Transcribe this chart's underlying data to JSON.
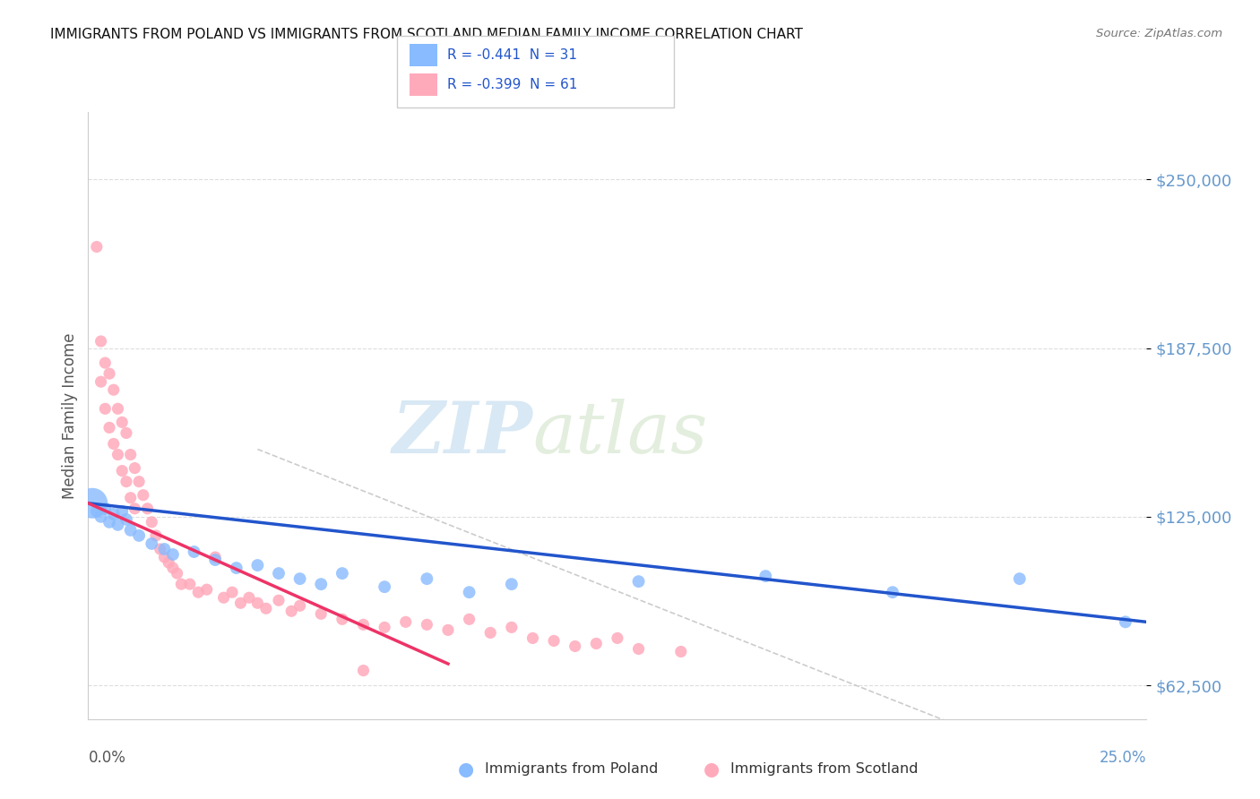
{
  "title": "IMMIGRANTS FROM POLAND VS IMMIGRANTS FROM SCOTLAND MEDIAN FAMILY INCOME CORRELATION CHART",
  "source": "Source: ZipAtlas.com",
  "ylabel": "Median Family Income",
  "yticks": [
    62500,
    125000,
    187500,
    250000
  ],
  "ytick_labels": [
    "$62,500",
    "$125,000",
    "$187,500",
    "$250,000"
  ],
  "xlim": [
    0.0,
    0.25
  ],
  "ylim": [
    50000,
    275000
  ],
  "legend_blue_label": "R = -0.441  N = 31",
  "legend_pink_label": "R = -0.399  N = 61",
  "legend_bottom_blue": "Immigrants from Poland",
  "legend_bottom_pink": "Immigrants from Scotland",
  "watermark_zip": "ZIP",
  "watermark_atlas": "atlas",
  "blue_color": "#88bbff",
  "pink_color": "#ffaabb",
  "blue_line_color": "#2255cc",
  "pink_line_color": "#ee3366",
  "tick_color": "#6699cc",
  "gray_dash_color": "#cccccc",
  "grid_color": "#dddddd",
  "poland_x": [
    0.001,
    0.002,
    0.003,
    0.004,
    0.005,
    0.006,
    0.007,
    0.008,
    0.009,
    0.01,
    0.012,
    0.015,
    0.018,
    0.02,
    0.025,
    0.03,
    0.035,
    0.04,
    0.045,
    0.05,
    0.055,
    0.06,
    0.07,
    0.08,
    0.09,
    0.1,
    0.13,
    0.16,
    0.19,
    0.22,
    0.245
  ],
  "poland_y": [
    130000,
    127000,
    125000,
    128000,
    123000,
    126000,
    122000,
    127000,
    124000,
    120000,
    118000,
    115000,
    113000,
    111000,
    112000,
    109000,
    106000,
    107000,
    104000,
    102000,
    100000,
    104000,
    99000,
    102000,
    97000,
    100000,
    101000,
    103000,
    97000,
    102000,
    86000
  ],
  "poland_sizes": [
    600,
    100,
    100,
    100,
    100,
    100,
    100,
    100,
    100,
    100,
    100,
    100,
    100,
    100,
    100,
    100,
    100,
    100,
    100,
    100,
    100,
    100,
    100,
    100,
    100,
    100,
    100,
    100,
    100,
    100,
    100
  ],
  "scotland_x": [
    0.002,
    0.003,
    0.003,
    0.004,
    0.004,
    0.005,
    0.005,
    0.006,
    0.006,
    0.007,
    0.007,
    0.008,
    0.008,
    0.009,
    0.009,
    0.01,
    0.01,
    0.011,
    0.011,
    0.012,
    0.013,
    0.014,
    0.015,
    0.016,
    0.017,
    0.018,
    0.019,
    0.02,
    0.021,
    0.022,
    0.024,
    0.026,
    0.028,
    0.03,
    0.032,
    0.034,
    0.036,
    0.038,
    0.04,
    0.042,
    0.045,
    0.048,
    0.05,
    0.055,
    0.06,
    0.065,
    0.07,
    0.075,
    0.08,
    0.085,
    0.09,
    0.095,
    0.1,
    0.105,
    0.11,
    0.115,
    0.12,
    0.125,
    0.13,
    0.14,
    0.065
  ],
  "scotland_y": [
    225000,
    190000,
    175000,
    182000,
    165000,
    178000,
    158000,
    172000,
    152000,
    165000,
    148000,
    160000,
    142000,
    156000,
    138000,
    148000,
    132000,
    143000,
    128000,
    138000,
    133000,
    128000,
    123000,
    118000,
    113000,
    110000,
    108000,
    106000,
    104000,
    100000,
    100000,
    97000,
    98000,
    110000,
    95000,
    97000,
    93000,
    95000,
    93000,
    91000,
    94000,
    90000,
    92000,
    89000,
    87000,
    85000,
    84000,
    86000,
    85000,
    83000,
    87000,
    82000,
    84000,
    80000,
    79000,
    77000,
    78000,
    80000,
    76000,
    75000,
    68000
  ]
}
